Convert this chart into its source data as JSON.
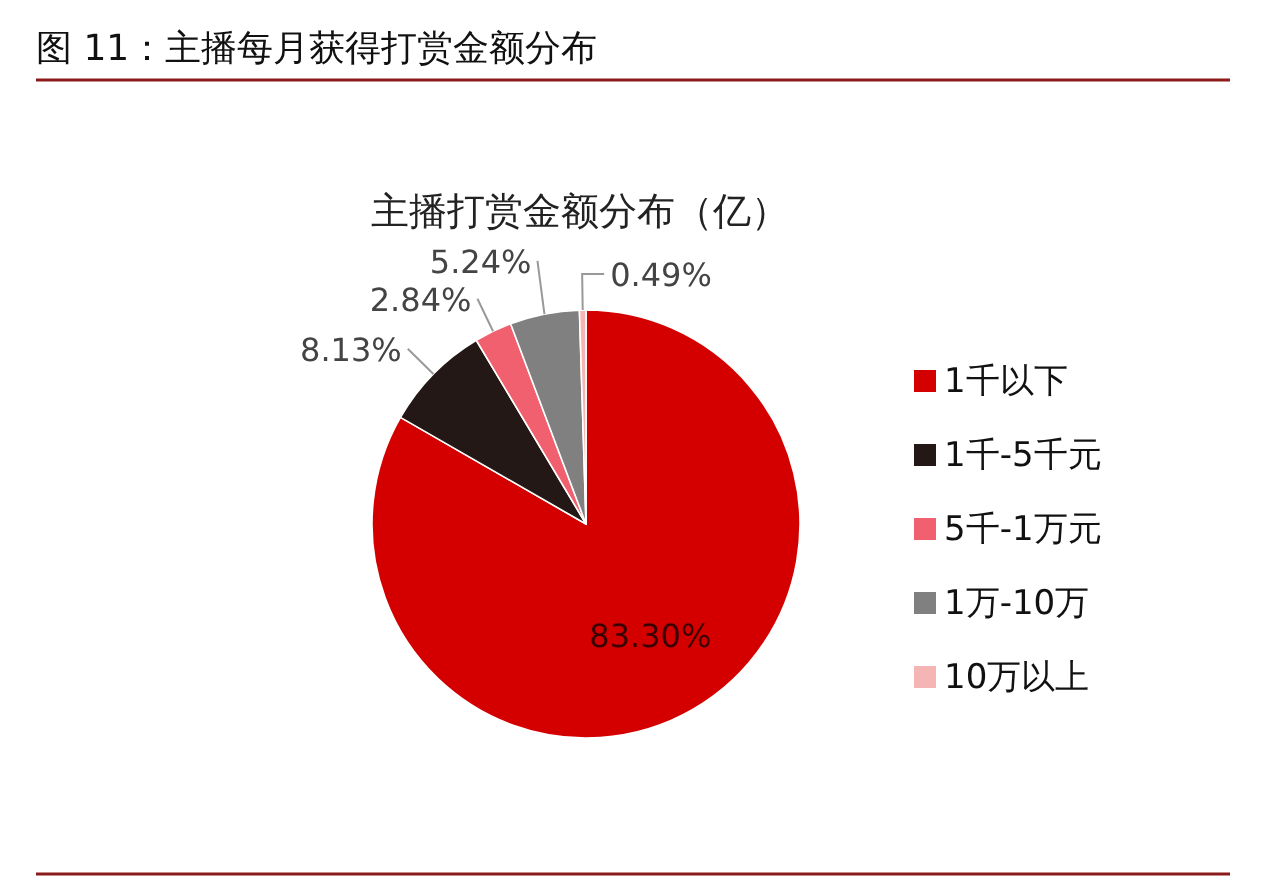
{
  "chart_data": {
    "type": "pie",
    "title": "图 11：主播每月获得打赏金额分布",
    "subtitle": "主播打赏金额分布（亿）",
    "categories": [
      "1千以下",
      "1千-5千元",
      "5千-1万元",
      "1万-10万",
      "10万以上"
    ],
    "values": [
      83.3,
      8.13,
      2.84,
      5.24,
      0.49
    ],
    "colors": [
      "#d40000",
      "#231815",
      "#f0606e",
      "#808080",
      "#f5b5b5"
    ],
    "value_labels": [
      "83.30%",
      "8.13%",
      "2.84%",
      "5.24%",
      "0.49%"
    ],
    "legend": "right"
  }
}
